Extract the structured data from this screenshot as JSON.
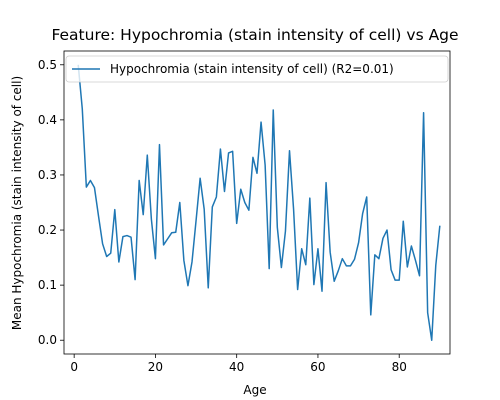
{
  "chart_data": {
    "type": "line",
    "title": "Feature: Hypochromia (stain intensity of cell) vs Age",
    "xlabel": "Age",
    "ylabel": "Mean Hypochromia (stain intensity of cell)",
    "xlim": [
      -2.5,
      92.5
    ],
    "ylim": [
      -0.025,
      0.525
    ],
    "xticks": [
      0,
      20,
      40,
      60,
      80
    ],
    "yticks": [
      0.0,
      0.1,
      0.2,
      0.3,
      0.4,
      0.5
    ],
    "ytick_labels": [
      "0.0",
      "0.1",
      "0.2",
      "0.3",
      "0.4",
      "0.5"
    ],
    "grid": false,
    "legend_position": "top-left",
    "line_color": "#1f77b4",
    "series": [
      {
        "name": "Hypochromia (stain intensity of cell) (R2=0.01)",
        "x": [
          1,
          2,
          3,
          4,
          5,
          6,
          7,
          8,
          9,
          10,
          11,
          12,
          13,
          14,
          15,
          16,
          17,
          18,
          19,
          20,
          21,
          22,
          23,
          24,
          25,
          26,
          27,
          28,
          29,
          30,
          31,
          32,
          33,
          34,
          35,
          36,
          37,
          38,
          39,
          40,
          41,
          42,
          43,
          44,
          45,
          46,
          47,
          48,
          49,
          50,
          51,
          52,
          53,
          54,
          55,
          56,
          57,
          58,
          59,
          60,
          61,
          62,
          63,
          64,
          65,
          66,
          67,
          68,
          69,
          70,
          71,
          72,
          73,
          74,
          75,
          76,
          77,
          78,
          79,
          80,
          81,
          82,
          83,
          84,
          85,
          86,
          87,
          88,
          89,
          90
        ],
        "y": [
          0.5,
          0.42,
          0.278,
          0.29,
          0.277,
          0.225,
          0.175,
          0.152,
          0.158,
          0.237,
          0.142,
          0.188,
          0.19,
          0.187,
          0.11,
          0.29,
          0.228,
          0.336,
          0.22,
          0.148,
          0.355,
          0.173,
          0.184,
          0.195,
          0.196,
          0.25,
          0.145,
          0.099,
          0.142,
          0.217,
          0.294,
          0.238,
          0.095,
          0.242,
          0.26,
          0.347,
          0.27,
          0.34,
          0.343,
          0.212,
          0.274,
          0.25,
          0.236,
          0.332,
          0.303,
          0.396,
          0.318,
          0.13,
          0.418,
          0.205,
          0.132,
          0.198,
          0.344,
          0.238,
          0.092,
          0.166,
          0.137,
          0.258,
          0.101,
          0.166,
          0.089,
          0.286,
          0.16,
          0.107,
          0.126,
          0.148,
          0.135,
          0.135,
          0.147,
          0.177,
          0.23,
          0.26,
          0.046,
          0.155,
          0.148,
          0.185,
          0.2,
          0.128,
          0.109,
          0.109,
          0.216,
          0.133,
          0.171,
          0.145,
          0.117,
          0.413,
          0.05,
          0.0,
          0.136,
          0.208
        ]
      }
    ]
  }
}
